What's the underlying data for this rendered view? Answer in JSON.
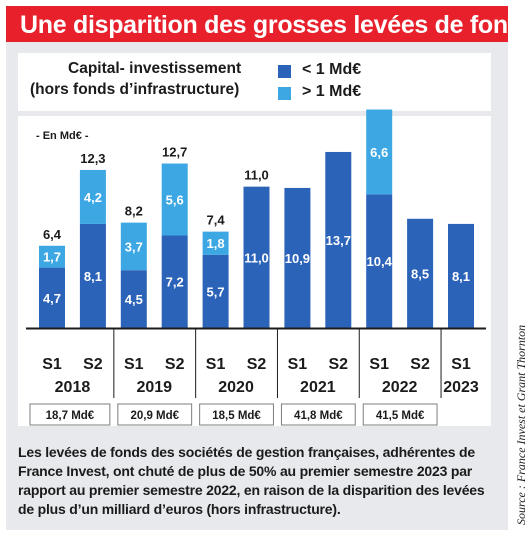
{
  "title": "Une disparition des grosses levées de fonds",
  "legend": {
    "title_line1": "Capital- investissement",
    "title_line2": "(hors fonds d’infrastructure)",
    "items": [
      {
        "label": "< 1 Md€",
        "color": "#2b63b8"
      },
      {
        "label": "> 1 Md€",
        "color": "#3da7e4"
      }
    ]
  },
  "unit_label": "- En Md€ -",
  "chart_data": {
    "type": "bar",
    "stacked": true,
    "categories": [
      "S1 2018",
      "S2 2018",
      "S1 2019",
      "S2 2019",
      "S1 2020",
      "S2 2020",
      "S1 2021",
      "S2 2021",
      "S1 2022",
      "S2 2022",
      "S1 2023"
    ],
    "semesters": [
      "S1",
      "S2",
      "S1",
      "S2",
      "S1",
      "S2",
      "S1",
      "S2",
      "S1",
      "S2",
      "S1"
    ],
    "years": [
      "2018",
      "2019",
      "2020",
      "2021",
      "2022",
      "2023"
    ],
    "series": [
      {
        "name": "< 1 Md€",
        "color": "#2b63b8",
        "values": [
          4.7,
          8.1,
          4.5,
          7.2,
          5.7,
          11.0,
          10.9,
          13.7,
          10.4,
          8.5,
          8.1
        ],
        "labels": [
          "4,7",
          "8,1",
          "4,5",
          "7,2",
          "5,7",
          "11,0",
          "10,9",
          "13,7",
          "10,4",
          "8,5",
          "8,1"
        ]
      },
      {
        "name": "> 1 Md€",
        "color": "#3da7e4",
        "values": [
          1.7,
          4.2,
          3.7,
          5.6,
          1.8,
          0,
          0,
          0,
          6.6,
          0,
          0
        ],
        "labels": [
          "1,7",
          "4,2",
          "3,7",
          "5,6",
          "1,8",
          "",
          "",
          "",
          "6,6",
          "",
          ""
        ]
      }
    ],
    "totals": [
      "6,4",
      "12,3",
      "8,2",
      "12,7",
      "7,4",
      "11,0",
      "",
      "",
      "",
      "",
      ""
    ],
    "yearly_totals": [
      "18,7 Md€",
      "20,9 Md€",
      "18,5 Md€",
      "41,8 Md€",
      "41,5 Md€"
    ],
    "ylim": [
      0,
      17.5
    ]
  },
  "caption": "Les levées de fonds des sociétés de gestion françaises, adhérentes de France Invest, ont chuté de plus de 50% au premier semestre 2023 par rapport au premier semestre 2022, en raison de la disparition des levées de plus d’un milliard d’euros (hors infrastructure).",
  "source": "Source : France Invest et Grant Thornton"
}
